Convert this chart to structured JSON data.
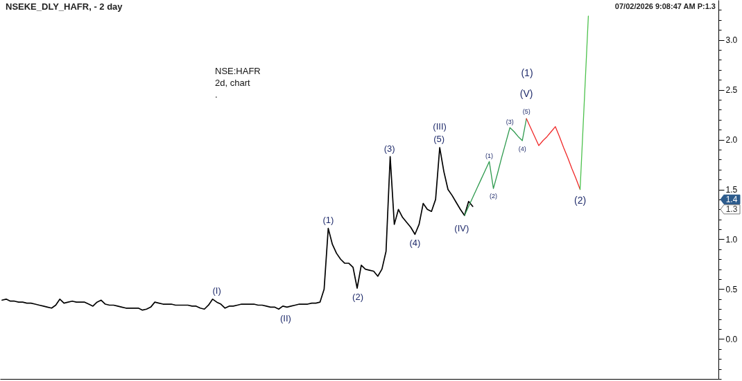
{
  "chart_data": {
    "type": "line",
    "title": "NSEKE_DLY_HAFR, - 2 day",
    "subtitle": "07/02/2026 9:08:47 AM P:1.3",
    "annotations": [
      "NSE:HAFR",
      "2d, chart",
      ".",
      {
        "text": "(I)",
        "y": 0.4
      },
      {
        "text": "(II)",
        "y": 0.3
      },
      {
        "text": "(1)",
        "y": 1.11
      },
      {
        "text": "(2)",
        "y": 0.51
      },
      {
        "text": "(3)",
        "y": 1.83
      },
      {
        "text": "(4)",
        "y": 1.05
      },
      {
        "text": "(5)",
        "y": 1.92
      },
      {
        "text": "(III)",
        "y": 1.92
      },
      {
        "text": "(IV)",
        "y": 1.24
      },
      {
        "text": "(1)",
        "y": 1.78
      },
      {
        "text": "(2)",
        "y": 1.51
      },
      {
        "text": "(3)",
        "y": 2.12
      },
      {
        "text": "(4)",
        "y": 1.99
      },
      {
        "text": "(5)",
        "y": 2.21
      },
      {
        "text": "(V)",
        "y": 2.21
      },
      "(1)",
      {
        "text": "(2)",
        "y": 1.5
      },
      {
        "text": "1.4",
        "y": 1.4
      },
      {
        "text": "1.3",
        "y": 1.3
      }
    ],
    "categories": [
      null,
      null,
      null,
      null,
      null,
      null,
      null,
      null,
      null,
      null,
      null,
      null,
      null,
      null,
      null,
      null,
      null,
      null,
      null,
      null,
      null,
      null,
      null,
      null,
      null,
      null,
      null,
      null,
      null,
      null,
      null,
      null,
      null,
      null,
      null,
      null,
      null,
      null,
      null,
      null,
      null,
      null,
      null,
      null,
      null,
      null,
      null,
      null,
      null,
      null,
      null,
      null,
      null,
      null,
      null,
      null,
      null,
      null,
      null,
      null,
      null,
      null,
      null,
      null,
      null,
      null,
      null,
      null,
      null,
      null,
      null,
      null,
      null,
      null,
      null,
      null,
      null,
      null,
      null,
      null,
      null,
      null,
      null,
      null,
      null,
      null,
      null,
      null,
      null,
      null,
      null,
      null,
      null,
      null,
      null,
      null,
      null,
      null,
      null,
      null,
      null,
      null,
      null,
      null,
      null,
      null,
      null,
      null,
      null,
      null,
      null,
      null,
      null,
      null,
      null,
      null,
      null,
      null,
      null,
      null,
      null,
      null,
      null,
      null,
      null,
      null,
      null,
      null,
      null,
      null,
      null,
      null,
      null,
      null,
      null,
      null,
      null,
      null,
      null,
      null,
      null,
      null,
      null,
      null,
      null,
      null,
      null,
      null,
      null,
      null,
      null,
      null,
      null,
      null,
      null,
      null,
      null,
      null,
      null,
      null,
      null,
      null,
      null,
      null,
      null,
      null,
      null,
      null,
      null,
      null,
      null,
      null,
      null,
      null
    ],
    "series": [
      {
        "color": "#000000",
        "values": [
          0.39,
          0.4,
          0.38,
          0.38,
          0.37,
          0.37,
          0.36,
          0.36,
          0.35,
          0.34,
          0.33,
          0.32,
          0.31,
          0.34,
          0.4,
          0.36,
          0.37,
          0.38,
          0.37,
          0.37,
          0.37,
          0.35,
          0.33,
          0.37,
          0.39,
          0.35,
          0.34,
          0.34,
          0.33,
          0.32,
          0.31,
          0.31,
          0.31,
          0.31,
          0.29,
          0.3,
          0.32,
          0.37,
          0.36,
          0.35,
          0.35,
          0.35,
          0.34,
          0.34,
          0.34,
          0.34,
          0.33,
          0.33,
          0.31,
          0.3,
          0.34,
          0.4,
          0.37,
          0.35,
          0.31,
          0.33,
          0.33,
          0.34,
          0.35,
          0.35,
          0.35,
          0.35,
          0.34,
          0.34,
          0.33,
          0.32,
          0.32,
          0.3,
          0.33,
          0.32,
          0.33,
          0.34,
          0.35,
          0.35,
          0.35,
          0.36,
          0.36,
          0.37,
          0.5,
          1.11,
          0.95,
          0.86,
          0.8,
          0.76,
          0.76,
          0.72,
          0.51,
          0.74,
          0.7,
          0.69,
          0.68,
          0.63,
          0.7,
          0.88,
          1.83,
          1.15,
          1.3,
          1.22,
          1.17,
          1.12,
          1.05,
          1.15,
          1.36,
          1.3,
          1.28,
          1.4,
          1.92,
          1.68,
          1.5,
          1.44,
          1.37,
          1.3,
          1.24,
          1.38,
          1.33,
          null,
          null,
          null,
          null,
          null,
          null,
          null,
          null,
          null,
          null,
          null,
          null,
          null,
          null,
          null,
          null,
          null,
          null,
          null,
          null,
          null,
          null,
          null,
          null,
          null,
          null,
          null,
          null,
          null,
          null,
          null,
          null,
          null,
          null,
          null,
          null,
          null,
          null,
          null,
          null,
          null,
          null,
          null,
          null,
          null,
          null,
          null,
          null,
          null,
          null,
          null,
          null,
          null,
          null,
          null,
          null,
          null,
          null,
          null
        ]
      },
      {
        "color": "#2e9a4e",
        "values": [
          null,
          null,
          null,
          null,
          null,
          null,
          null,
          null,
          null,
          null,
          null,
          null,
          null,
          null,
          null,
          null,
          null,
          null,
          null,
          null,
          null,
          null,
          null,
          null,
          null,
          null,
          null,
          null,
          null,
          null,
          null,
          null,
          null,
          null,
          null,
          null,
          null,
          null,
          null,
          null,
          null,
          null,
          null,
          null,
          null,
          null,
          null,
          null,
          null,
          null,
          null,
          null,
          null,
          null,
          null,
          null,
          null,
          null,
          null,
          null,
          null,
          null,
          null,
          null,
          null,
          null,
          null,
          null,
          null,
          null,
          null,
          null,
          null,
          null,
          null,
          null,
          null,
          null,
          null,
          null,
          null,
          null,
          null,
          null,
          null,
          null,
          null,
          null,
          null,
          null,
          null,
          null,
          null,
          null,
          null,
          null,
          null,
          null,
          null,
          null,
          null,
          null,
          null,
          null,
          null,
          null,
          null,
          null,
          null,
          null,
          null,
          null,
          1.24,
          1.33,
          1.42,
          1.51,
          1.6,
          1.69,
          1.78,
          1.51,
          1.66,
          1.82,
          1.97,
          2.12,
          2.08,
          2.03,
          1.99,
          2.21,
          null,
          null,
          null,
          null,
          null,
          null,
          null,
          null,
          null,
          null,
          null,
          null,
          null,
          null,
          null,
          null,
          null,
          null,
          null,
          null,
          null,
          null,
          null,
          null,
          null,
          null,
          null,
          null,
          null,
          null,
          null,
          null,
          null,
          null,
          null,
          null,
          null,
          null,
          null,
          null,
          null,
          null,
          null,
          null,
          null,
          null
        ]
      },
      {
        "color": "#f02828",
        "values": [
          null,
          null,
          null,
          null,
          null,
          null,
          null,
          null,
          null,
          null,
          null,
          null,
          null,
          null,
          null,
          null,
          null,
          null,
          null,
          null,
          null,
          null,
          null,
          null,
          null,
          null,
          null,
          null,
          null,
          null,
          null,
          null,
          null,
          null,
          null,
          null,
          null,
          null,
          null,
          null,
          null,
          null,
          null,
          null,
          null,
          null,
          null,
          null,
          null,
          null,
          null,
          null,
          null,
          null,
          null,
          null,
          null,
          null,
          null,
          null,
          null,
          null,
          null,
          null,
          null,
          null,
          null,
          null,
          null,
          null,
          null,
          null,
          null,
          null,
          null,
          null,
          null,
          null,
          null,
          null,
          null,
          null,
          null,
          null,
          null,
          null,
          null,
          null,
          null,
          null,
          null,
          null,
          null,
          null,
          null,
          null,
          null,
          null,
          null,
          null,
          null,
          null,
          null,
          null,
          null,
          null,
          null,
          null,
          null,
          null,
          null,
          null,
          null,
          null,
          null,
          null,
          null,
          null,
          null,
          null,
          null,
          null,
          null,
          null,
          null,
          null,
          null,
          2.21,
          2.12,
          2.03,
          1.94,
          1.99,
          2.03,
          2.08,
          2.13,
          2.03,
          1.92,
          1.82,
          1.71,
          1.61,
          1.5,
          null,
          null,
          null,
          null,
          null,
          null,
          null,
          null,
          null,
          null,
          null,
          null,
          null,
          null,
          null,
          null,
          null,
          null,
          null,
          null,
          null,
          null,
          null,
          null,
          null,
          null,
          null,
          null,
          null,
          null,
          null,
          null,
          null
        ]
      },
      {
        "color": "#4cc14c",
        "values": [
          null,
          null,
          null,
          null,
          null,
          null,
          null,
          null,
          null,
          null,
          null,
          null,
          null,
          null,
          null,
          null,
          null,
          null,
          null,
          null,
          null,
          null,
          null,
          null,
          null,
          null,
          null,
          null,
          null,
          null,
          null,
          null,
          null,
          null,
          null,
          null,
          null,
          null,
          null,
          null,
          null,
          null,
          null,
          null,
          null,
          null,
          null,
          null,
          null,
          null,
          null,
          null,
          null,
          null,
          null,
          null,
          null,
          null,
          null,
          null,
          null,
          null,
          null,
          null,
          null,
          null,
          null,
          null,
          null,
          null,
          null,
          null,
          null,
          null,
          null,
          null,
          null,
          null,
          null,
          null,
          null,
          null,
          null,
          null,
          null,
          null,
          null,
          null,
          null,
          null,
          null,
          null,
          null,
          null,
          null,
          null,
          null,
          null,
          null,
          null,
          null,
          null,
          null,
          null,
          null,
          null,
          null,
          null,
          null,
          null,
          null,
          null,
          null,
          null,
          null,
          null,
          null,
          null,
          null,
          null,
          null,
          null,
          null,
          null,
          null,
          null,
          null,
          null,
          null,
          null,
          null,
          null,
          null,
          null,
          null,
          null,
          null,
          null,
          null,
          null,
          1.5,
          2.37,
          3.24,
          null,
          null,
          null,
          null,
          null,
          null,
          null,
          null,
          null,
          null,
          null,
          null,
          null,
          null,
          null,
          null,
          null,
          null,
          null,
          null,
          null,
          null,
          null,
          null,
          null,
          null,
          null,
          null,
          null,
          null,
          null
        ]
      }
    ],
    "ylim": [
      -0.4,
      3.4
    ],
    "yticks": [
      {
        "value": -0.4,
        "label": null
      },
      {
        "value": -0.3,
        "label": null
      },
      {
        "value": -0.2,
        "label": null
      },
      {
        "value": -0.1,
        "label": null
      },
      {
        "value": 0,
        "label": "0.0"
      },
      {
        "value": 0.1,
        "label": null
      },
      {
        "value": 0.2,
        "label": null
      },
      {
        "value": 0.3,
        "label": null
      },
      {
        "value": 0.4,
        "label": null
      },
      {
        "value": 0.5,
        "label": "0.5"
      },
      {
        "value": 0.6,
        "label": null
      },
      {
        "value": 0.7,
        "label": null
      },
      {
        "value": 0.8,
        "label": null
      },
      {
        "value": 0.9,
        "label": null
      },
      {
        "value": 1,
        "label": "1.0"
      },
      {
        "value": 1.1,
        "label": null
      },
      {
        "value": 1.2,
        "label": null
      },
      {
        "value": 1.3,
        "label": null
      },
      {
        "value": 1.4,
        "label": null
      },
      {
        "value": 1.5,
        "label": "1.5"
      },
      {
        "value": 1.6,
        "label": null
      },
      {
        "value": 1.7,
        "label": null
      },
      {
        "value": 1.8,
        "label": null
      },
      {
        "value": 1.9,
        "label": null
      },
      {
        "value": 2,
        "label": "2.0"
      },
      {
        "value": 2.1,
        "label": null
      },
      {
        "value": 2.2,
        "label": null
      },
      {
        "value": 2.3,
        "label": null
      },
      {
        "value": 2.4,
        "label": null
      },
      {
        "value": 2.5,
        "label": "2.5"
      },
      {
        "value": 2.6,
        "label": null
      },
      {
        "value": 2.7,
        "label": null
      },
      {
        "value": 2.8,
        "label": null
      },
      {
        "value": 2.9,
        "label": null
      },
      {
        "value": 3,
        "label": "3.0"
      },
      {
        "value": 3.1,
        "label": null
      },
      {
        "value": 3.2,
        "label": null
      },
      {
        "value": 3.3,
        "label": null
      }
    ],
    "tick_labels": "y"
  }
}
